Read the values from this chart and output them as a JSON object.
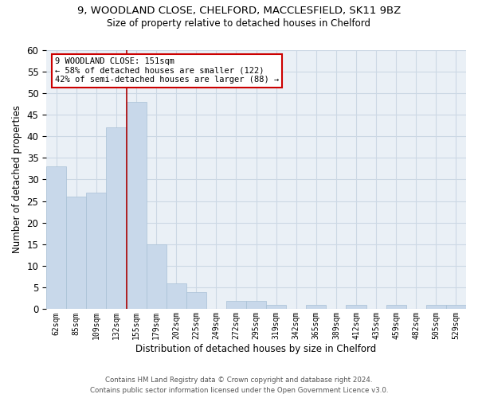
{
  "title": "9, WOODLAND CLOSE, CHELFORD, MACCLESFIELD, SK11 9BZ",
  "subtitle": "Size of property relative to detached houses in Chelford",
  "xlabel": "Distribution of detached houses by size in Chelford",
  "ylabel": "Number of detached properties",
  "bar_color": "#c8d8ea",
  "bar_edge_color": "#a8c0d6",
  "bin_labels": [
    "62sqm",
    "85sqm",
    "109sqm",
    "132sqm",
    "155sqm",
    "179sqm",
    "202sqm",
    "225sqm",
    "249sqm",
    "272sqm",
    "295sqm",
    "319sqm",
    "342sqm",
    "365sqm",
    "389sqm",
    "412sqm",
    "435sqm",
    "459sqm",
    "482sqm",
    "505sqm",
    "529sqm"
  ],
  "bar_heights": [
    33,
    26,
    27,
    42,
    48,
    15,
    6,
    4,
    0,
    2,
    2,
    1,
    0,
    1,
    0,
    1,
    0,
    1,
    0,
    1,
    1
  ],
  "ylim": [
    0,
    60
  ],
  "yticks": [
    0,
    5,
    10,
    15,
    20,
    25,
    30,
    35,
    40,
    45,
    50,
    55,
    60
  ],
  "property_line_color": "#aa0000",
  "annotation_line1": "9 WOODLAND CLOSE: 151sqm",
  "annotation_line2": "← 58% of detached houses are smaller (122)",
  "annotation_line3": "42% of semi-detached houses are larger (88) →",
  "annotation_box_color": "#ffffff",
  "annotation_box_edge_color": "#cc0000",
  "footer_line1": "Contains HM Land Registry data © Crown copyright and database right 2024.",
  "footer_line2": "Contains public sector information licensed under the Open Government Licence v3.0.",
  "grid_color": "#ccd8e4",
  "background_color": "#eaf0f6"
}
